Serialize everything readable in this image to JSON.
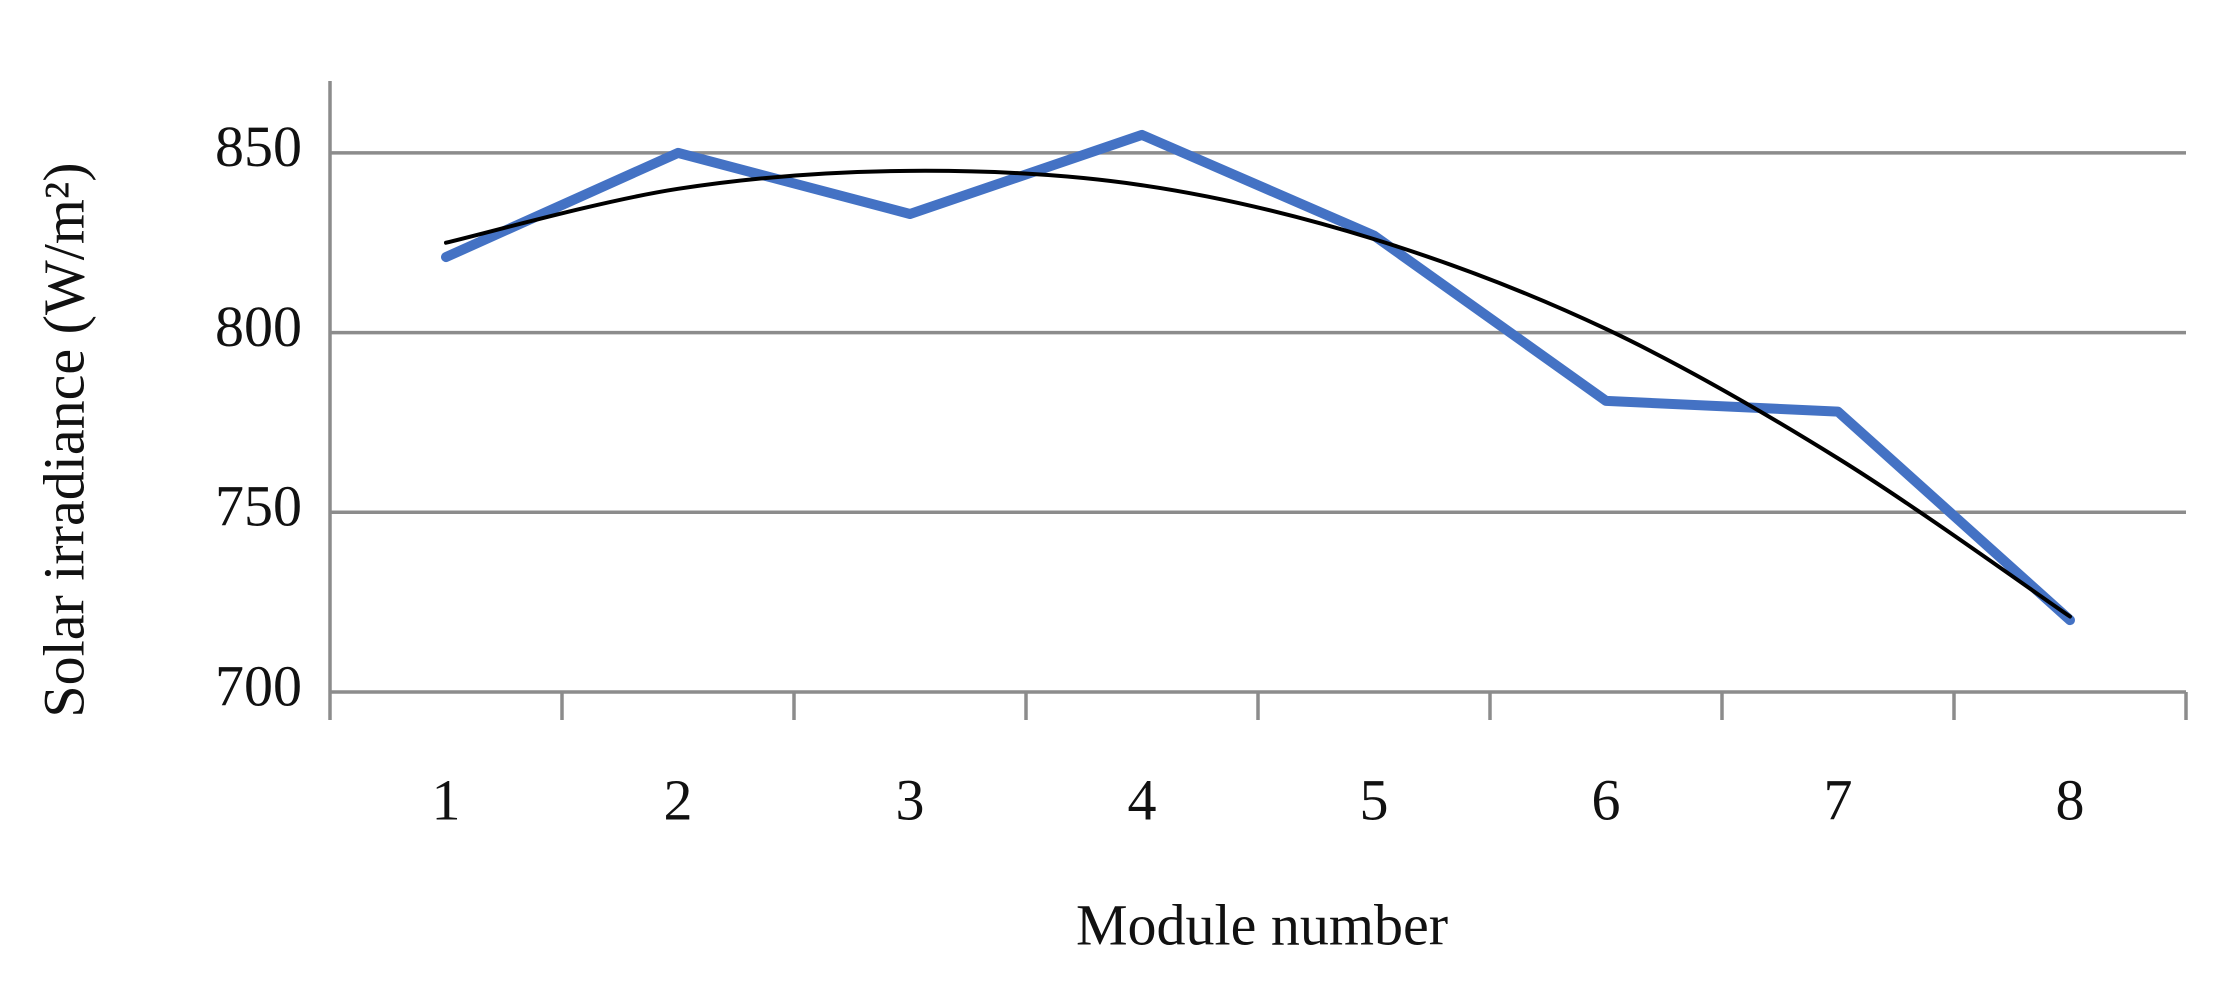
{
  "chart_data": {
    "type": "line",
    "x_label": "Module number",
    "y_label": "Solar irradiance (W/m²)",
    "categories": [
      "1",
      "2",
      "3",
      "4",
      "5",
      "6",
      "7",
      "8"
    ],
    "series": [
      {
        "color": "#4472c4",
        "values": [
          821,
          850,
          833,
          855,
          827,
          781,
          778,
          720
        ]
      },
      {
        "color": "#000000",
        "values": [
          825,
          840,
          845,
          841,
          826,
          801,
          765,
          721
        ]
      }
    ],
    "ylim": [
      700,
      870
    ],
    "yticks": [
      700,
      750,
      800,
      850
    ],
    "grid": true
  }
}
